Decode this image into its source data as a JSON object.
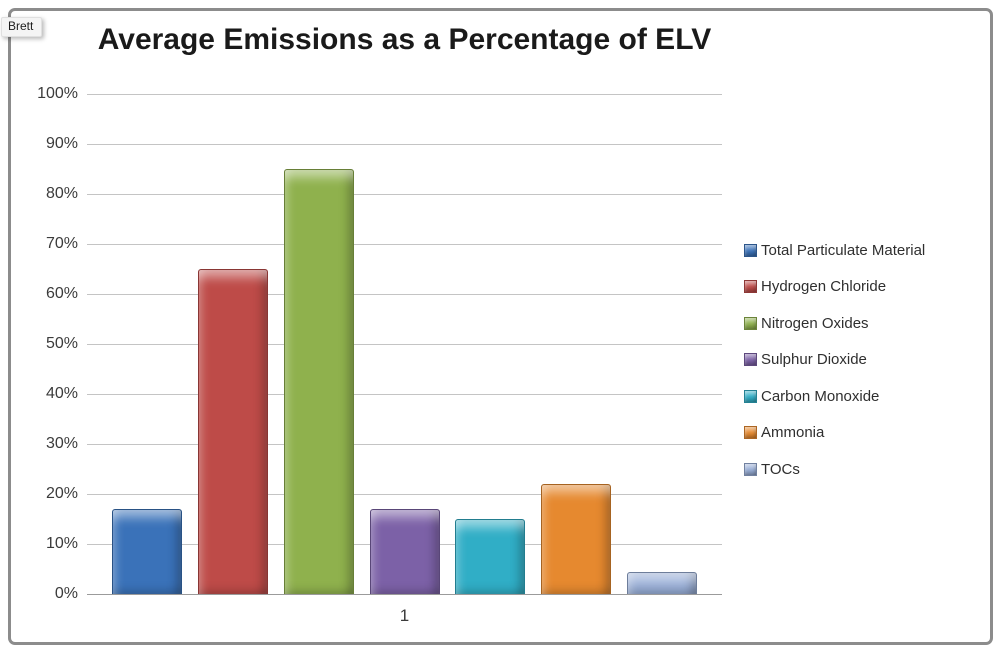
{
  "overlay": {
    "cursor_label": "Brett"
  },
  "chart_data": {
    "type": "bar",
    "title": "Average Emissions as a Percentage of ELV",
    "xlabel": "",
    "ylabel": "",
    "categories": [
      "1"
    ],
    "series": [
      {
        "name": "Total Particulate Material",
        "value": 17,
        "color": "#3a72b9"
      },
      {
        "name": "Hydrogen Chloride",
        "value": 65,
        "color": "#be4b48"
      },
      {
        "name": "Nitrogen Oxides",
        "value": 85,
        "color": "#8fb14d"
      },
      {
        "name": "Sulphur Dioxide",
        "value": 17,
        "color": "#7c61a7"
      },
      {
        "name": "Carbon Monoxide",
        "value": 15,
        "color": "#30aec6"
      },
      {
        "name": "Ammonia",
        "value": 22,
        "color": "#e6892f"
      },
      {
        "name": "TOCs",
        "value": 4.5,
        "color": "#97add6"
      }
    ],
    "ylim": [
      0,
      100
    ],
    "ytick_step": 10,
    "ytick_labels": [
      "0%",
      "10%",
      "20%",
      "30%",
      "40%",
      "50%",
      "60%",
      "70%",
      "80%",
      "90%",
      "100%"
    ],
    "grid": true,
    "legend_position": "right"
  }
}
